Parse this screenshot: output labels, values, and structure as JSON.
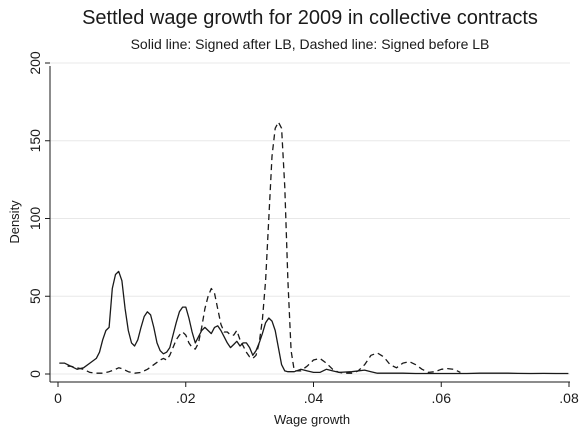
{
  "chart_data": {
    "type": "line",
    "title": "Settled wage growth for 2009 in collective contracts",
    "subtitle": "Solid line: Signed after LB, Dashed line: Signed before LB",
    "xlabel": "Wage growth",
    "ylabel": "Density",
    "xlim": [
      0,
      0.08
    ],
    "ylim": [
      0,
      200
    ],
    "x_ticks": [
      {
        "value": 0,
        "label": "0"
      },
      {
        "value": 0.02,
        "label": ".02"
      },
      {
        "value": 0.04,
        "label": ".04"
      },
      {
        "value": 0.06,
        "label": ".06"
      },
      {
        "value": 0.08,
        "label": ".08"
      }
    ],
    "y_ticks": [
      {
        "value": 0,
        "label": "0"
      },
      {
        "value": 50,
        "label": "50"
      },
      {
        "value": 100,
        "label": "100"
      },
      {
        "value": 150,
        "label": "150"
      },
      {
        "value": 200,
        "label": "200"
      }
    ],
    "grid": true,
    "line_color": "#1a1a1a",
    "grid_color": "#e8e8e8",
    "series": [
      {
        "style": "solid",
        "points": [
          [
            0.0002,
            7
          ],
          [
            0.001,
            7
          ],
          [
            0.002,
            5
          ],
          [
            0.003,
            3
          ],
          [
            0.004,
            4
          ],
          [
            0.005,
            7
          ],
          [
            0.006,
            10
          ],
          [
            0.0065,
            14
          ],
          [
            0.007,
            22
          ],
          [
            0.0075,
            28
          ],
          [
            0.008,
            30
          ],
          [
            0.0085,
            55
          ],
          [
            0.009,
            64
          ],
          [
            0.0095,
            66
          ],
          [
            0.01,
            60
          ],
          [
            0.0105,
            42
          ],
          [
            0.011,
            28
          ],
          [
            0.0115,
            20
          ],
          [
            0.012,
            18
          ],
          [
            0.0125,
            22
          ],
          [
            0.013,
            30
          ],
          [
            0.0135,
            37
          ],
          [
            0.014,
            40
          ],
          [
            0.0145,
            38
          ],
          [
            0.015,
            30
          ],
          [
            0.0155,
            20
          ],
          [
            0.016,
            15
          ],
          [
            0.0165,
            13
          ],
          [
            0.017,
            14
          ],
          [
            0.0175,
            17
          ],
          [
            0.018,
            25
          ],
          [
            0.0185,
            33
          ],
          [
            0.019,
            40
          ],
          [
            0.0195,
            43
          ],
          [
            0.02,
            43
          ],
          [
            0.0205,
            36
          ],
          [
            0.021,
            27
          ],
          [
            0.0215,
            20
          ],
          [
            0.022,
            24
          ],
          [
            0.0225,
            28
          ],
          [
            0.023,
            30
          ],
          [
            0.0235,
            28
          ],
          [
            0.024,
            26
          ],
          [
            0.0245,
            30
          ],
          [
            0.025,
            31
          ],
          [
            0.0255,
            28
          ],
          [
            0.026,
            24
          ],
          [
            0.0265,
            20
          ],
          [
            0.027,
            17
          ],
          [
            0.0275,
            19
          ],
          [
            0.028,
            21
          ],
          [
            0.0285,
            18
          ],
          [
            0.029,
            20
          ],
          [
            0.0295,
            20
          ],
          [
            0.03,
            17
          ],
          [
            0.0305,
            12
          ],
          [
            0.031,
            15
          ],
          [
            0.0315,
            20
          ],
          [
            0.032,
            26
          ],
          [
            0.0325,
            33
          ],
          [
            0.033,
            36
          ],
          [
            0.0335,
            34
          ],
          [
            0.034,
            28
          ],
          [
            0.0345,
            17
          ],
          [
            0.035,
            6
          ],
          [
            0.0355,
            2
          ],
          [
            0.036,
            1.5
          ],
          [
            0.037,
            1.5
          ],
          [
            0.038,
            3
          ],
          [
            0.039,
            2
          ],
          [
            0.04,
            1
          ],
          [
            0.041,
            1
          ],
          [
            0.042,
            3
          ],
          [
            0.043,
            2
          ],
          [
            0.044,
            1
          ],
          [
            0.046,
            1.5
          ],
          [
            0.048,
            2.5
          ],
          [
            0.049,
            1.5
          ],
          [
            0.05,
            0.5
          ],
          [
            0.052,
            0.5
          ],
          [
            0.054,
            0.5
          ],
          [
            0.056,
            0.3
          ],
          [
            0.058,
            0.3
          ],
          [
            0.06,
            0.3
          ],
          [
            0.062,
            0.3
          ],
          [
            0.064,
            0.3
          ],
          [
            0.066,
            0.5
          ],
          [
            0.068,
            0.5
          ],
          [
            0.07,
            0.6
          ],
          [
            0.072,
            0.4
          ],
          [
            0.074,
            0.3
          ],
          [
            0.076,
            0.4
          ],
          [
            0.078,
            0.3
          ],
          [
            0.0799,
            0.3
          ]
        ]
      },
      {
        "style": "dashed",
        "points": [
          [
            0.0015,
            5
          ],
          [
            0.002,
            5
          ],
          [
            0.003,
            4
          ],
          [
            0.004,
            3
          ],
          [
            0.005,
            1
          ],
          [
            0.006,
            0.5
          ],
          [
            0.007,
            0.5
          ],
          [
            0.008,
            1.5
          ],
          [
            0.009,
            3
          ],
          [
            0.0095,
            4
          ],
          [
            0.01,
            3.5
          ],
          [
            0.011,
            1.5
          ],
          [
            0.012,
            0.5
          ],
          [
            0.013,
            1
          ],
          [
            0.014,
            3
          ],
          [
            0.015,
            6
          ],
          [
            0.016,
            9
          ],
          [
            0.0165,
            10
          ],
          [
            0.017,
            9
          ],
          [
            0.0175,
            12
          ],
          [
            0.018,
            17
          ],
          [
            0.0185,
            22
          ],
          [
            0.019,
            25
          ],
          [
            0.0195,
            27
          ],
          [
            0.02,
            25
          ],
          [
            0.0205,
            20
          ],
          [
            0.021,
            17
          ],
          [
            0.0215,
            16
          ],
          [
            0.022,
            20
          ],
          [
            0.0225,
            30
          ],
          [
            0.023,
            42
          ],
          [
            0.0235,
            50
          ],
          [
            0.024,
            55
          ],
          [
            0.0245,
            52
          ],
          [
            0.025,
            42
          ],
          [
            0.0255,
            32
          ],
          [
            0.026,
            27
          ],
          [
            0.0265,
            27
          ],
          [
            0.027,
            25
          ],
          [
            0.0275,
            25
          ],
          [
            0.028,
            28
          ],
          [
            0.0285,
            22
          ],
          [
            0.029,
            18
          ],
          [
            0.0295,
            14
          ],
          [
            0.03,
            11
          ],
          [
            0.0305,
            10
          ],
          [
            0.031,
            12
          ],
          [
            0.0315,
            20
          ],
          [
            0.032,
            35
          ],
          [
            0.0325,
            60
          ],
          [
            0.033,
            100
          ],
          [
            0.0335,
            140
          ],
          [
            0.034,
            158
          ],
          [
            0.0345,
            162
          ],
          [
            0.035,
            158
          ],
          [
            0.0355,
            120
          ],
          [
            0.036,
            60
          ],
          [
            0.0365,
            15
          ],
          [
            0.037,
            2
          ],
          [
            0.038,
            2
          ],
          [
            0.039,
            5
          ],
          [
            0.04,
            9
          ],
          [
            0.041,
            10
          ],
          [
            0.042,
            7
          ],
          [
            0.043,
            3
          ],
          [
            0.044,
            1
          ],
          [
            0.045,
            0.5
          ],
          [
            0.046,
            0.5
          ],
          [
            0.047,
            2
          ],
          [
            0.048,
            6
          ],
          [
            0.049,
            12
          ],
          [
            0.05,
            13.5
          ],
          [
            0.051,
            11
          ],
          [
            0.052,
            6
          ],
          [
            0.053,
            4
          ],
          [
            0.054,
            7
          ],
          [
            0.055,
            8
          ],
          [
            0.056,
            6
          ],
          [
            0.057,
            3
          ],
          [
            0.058,
            1
          ],
          [
            0.059,
            1.5
          ],
          [
            0.06,
            3
          ],
          [
            0.061,
            3.5
          ],
          [
            0.062,
            3
          ],
          [
            0.063,
            1
          ]
        ]
      }
    ]
  }
}
